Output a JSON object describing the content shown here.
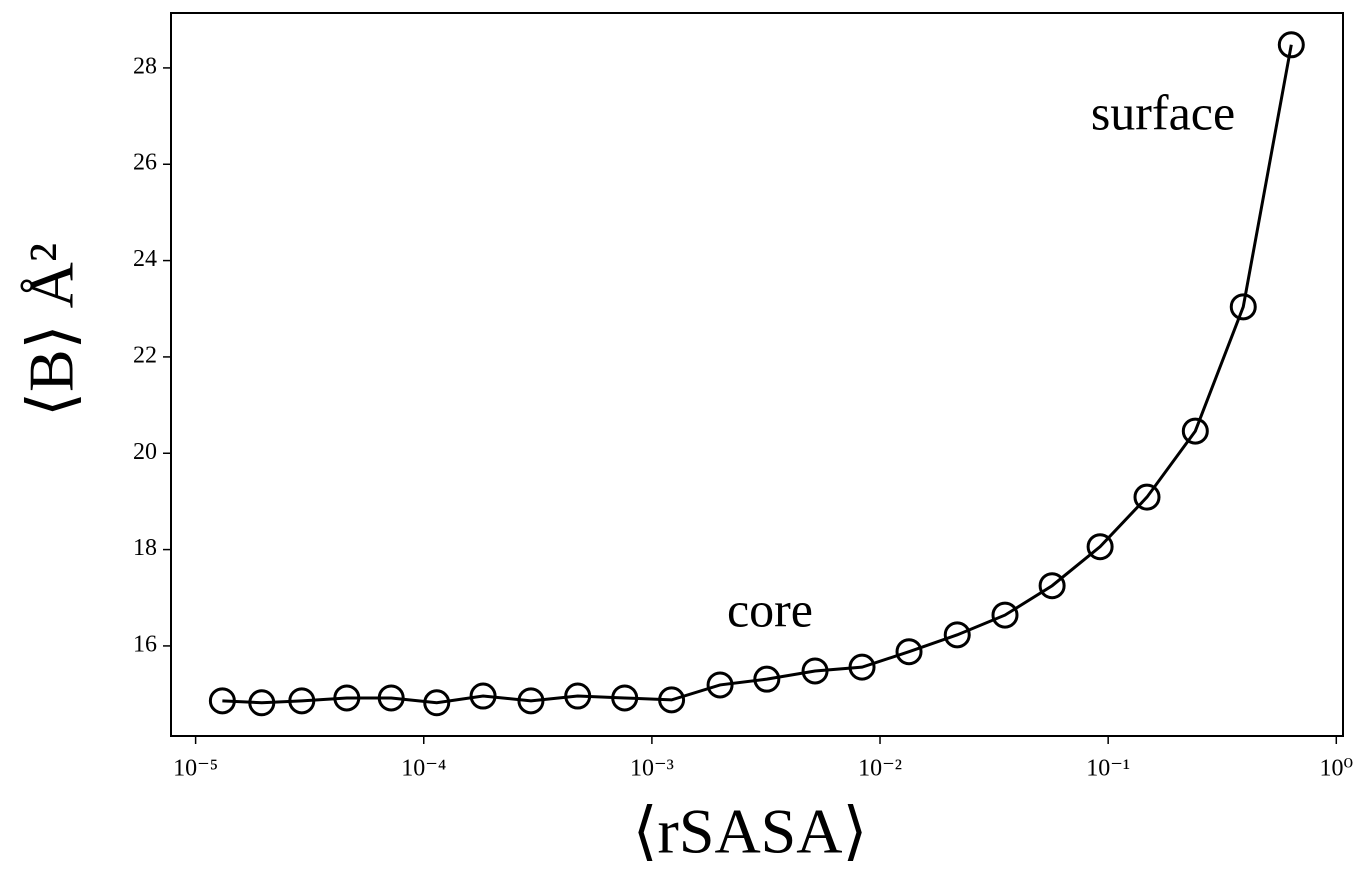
{
  "chart_data": {
    "type": "line",
    "x": [
      1.31e-05,
      1.95e-05,
      2.92e-05,
      4.6e-05,
      7.2e-05,
      0.000114,
      0.000182,
      0.000295,
      0.000473,
      0.00076,
      0.00122,
      0.00199,
      0.00319,
      0.00519,
      0.00834,
      0.0134,
      0.0218,
      0.0353,
      0.0568,
      0.0922,
      0.148,
      0.241,
      0.391,
      0.635
    ],
    "series": [
      {
        "color": "#000000",
        "values": [
          14.86,
          14.82,
          14.86,
          14.92,
          14.92,
          14.82,
          14.96,
          14.86,
          14.96,
          14.92,
          14.88,
          15.19,
          15.31,
          15.48,
          15.56,
          15.88,
          16.23,
          16.64,
          17.25,
          18.06,
          19.09,
          20.46,
          23.04,
          28.48
        ]
      }
    ],
    "x_label": "⟨rSASA⟩",
    "y_label": "⟨B⟩ Å²",
    "annotations": [
      "core",
      "surface"
    ],
    "xscale": "log",
    "xlim": [
      7.8e-06,
      1.07
    ],
    "ylim": [
      14.13,
      29.14
    ],
    "xticks": [
      {
        "value": 1e-05,
        "label": "10⁻⁵"
      },
      {
        "value": 0.0001,
        "label": "10⁻⁴"
      },
      {
        "value": 0.001,
        "label": "10⁻³"
      },
      {
        "value": 0.01,
        "label": "10⁻²"
      },
      {
        "value": 0.1,
        "label": "10⁻¹"
      },
      {
        "value": 1,
        "label": "10⁰"
      }
    ],
    "yticks": [
      16,
      18,
      20,
      22,
      24,
      26,
      28
    ],
    "grid": false
  }
}
